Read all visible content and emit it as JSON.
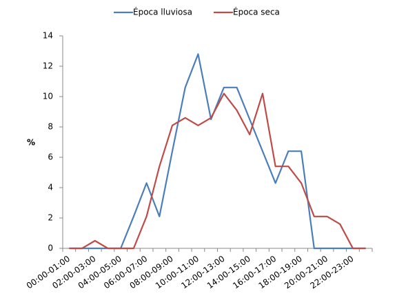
{
  "chart_data": {
    "type": "line",
    "categories": [
      "00:00-01:00",
      null,
      "02:00-03:00",
      null,
      "04:00-05:00",
      null,
      "06:00-07:00",
      null,
      "08:00-09:00",
      null,
      "10:00-11:00",
      null,
      "12:00-13:00",
      null,
      "14:00-15:00",
      null,
      "16:00-17:00",
      null,
      "18:00-19:00",
      null,
      "20:00-21:00",
      null,
      "22:00-23:00",
      null
    ],
    "series": [
      {
        "name": "Época lluviosa",
        "color": "#4a7ebb",
        "values": [
          0,
          0,
          0,
          0,
          0,
          2.1,
          4.3,
          2.1,
          6.4,
          10.6,
          12.8,
          8.5,
          10.6,
          10.6,
          8.5,
          6.4,
          4.3,
          6.4,
          6.4,
          0,
          0,
          0,
          0,
          0
        ]
      },
      {
        "name": "Época seca",
        "color": "#be4b48",
        "values": [
          0,
          0,
          0.5,
          0,
          0,
          0,
          2.1,
          5.4,
          8.1,
          8.6,
          8.1,
          8.6,
          10.2,
          9.1,
          7.5,
          10.2,
          5.4,
          5.4,
          4.3,
          2.1,
          2.1,
          1.6,
          0,
          0
        ]
      }
    ],
    "ylabel": "%",
    "ylim": [
      0,
      14
    ],
    "yticks": [
      0,
      2,
      4,
      6,
      8,
      10,
      12,
      14
    ],
    "grid": false,
    "legend": "top"
  }
}
